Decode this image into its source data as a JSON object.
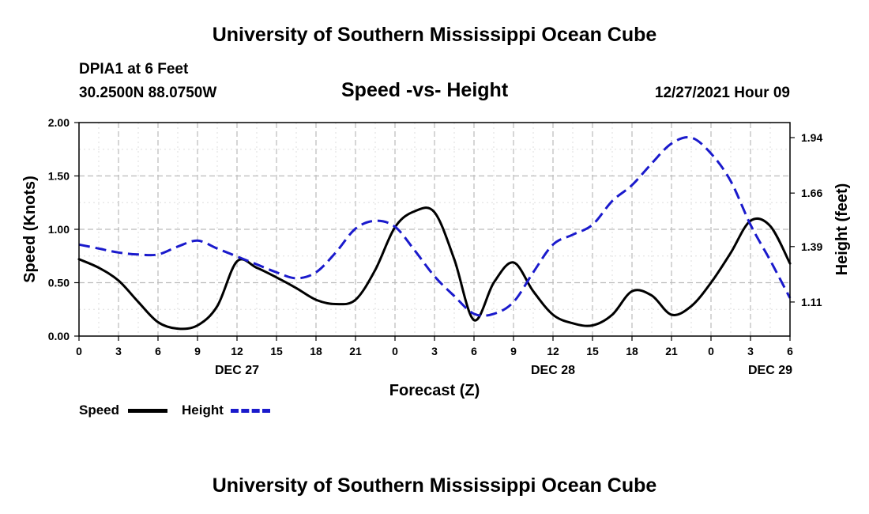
{
  "header": {
    "title": "University of Southern Mississippi Ocean Cube",
    "footer_title": "University of Southern Mississippi Ocean Cube",
    "station": "DPIA1 at 6 Feet",
    "coords": "30.2500N  88.0750W",
    "datetime": "12/27/2021 Hour 09"
  },
  "legend": {
    "speed_label": "Speed",
    "height_label": "Height",
    "speed_color": "#000000",
    "height_color": "#1a1acc"
  },
  "chart_data": {
    "type": "line",
    "title": "Speed -vs- Height",
    "xlabel": "Forecast (Z)",
    "ylabel": "Speed (Knots)",
    "y2label": "Height (feet)",
    "x_range_hours": [
      0,
      54
    ],
    "ylim": [
      0,
      2.0
    ],
    "y2lim": [
      0.938,
      2.016
    ],
    "x_tick_hours": [
      0,
      3,
      6,
      9,
      12,
      15,
      18,
      21,
      24,
      27,
      30,
      33,
      36,
      39,
      42,
      45,
      48,
      51,
      54
    ],
    "x_tick_labels": [
      "0",
      "3",
      "6",
      "9",
      "12",
      "15",
      "18",
      "21",
      "0",
      "3",
      "6",
      "9",
      "12",
      "15",
      "18",
      "21",
      "0",
      "3",
      "6"
    ],
    "date_labels": [
      {
        "hour": 12,
        "label": "DEC 27"
      },
      {
        "hour": 36,
        "label": "DEC 28"
      },
      {
        "hour": 52.5,
        "label": "DEC 29"
      }
    ],
    "y_ticks": [
      0.0,
      0.5,
      1.0,
      1.5,
      2.0
    ],
    "y_tick_labels": [
      "0.00",
      "0.50",
      "1.00",
      "1.50",
      "2.00"
    ],
    "y2_ticks": [
      1.11,
      1.39,
      1.66,
      1.94
    ],
    "y2_tick_labels": [
      "1.11",
      "1.39",
      "1.66",
      "1.94"
    ],
    "grid": true,
    "series": [
      {
        "name": "Speed",
        "axis": "left",
        "style": "solid",
        "color": "#000000",
        "x": [
          0,
          1.5,
          3,
          4.5,
          6,
          7.5,
          9,
          10.5,
          12,
          13.5,
          15,
          16.5,
          18,
          19.5,
          21,
          22.5,
          24,
          25.5,
          27,
          28.5,
          30,
          31.5,
          33,
          34.5,
          36,
          37.5,
          39,
          40.5,
          42,
          43.5,
          45,
          46.5,
          48,
          49.5,
          51,
          52.5,
          54
        ],
        "y": [
          0.72,
          0.64,
          0.52,
          0.32,
          0.13,
          0.07,
          0.1,
          0.28,
          0.7,
          0.64,
          0.55,
          0.45,
          0.34,
          0.3,
          0.34,
          0.62,
          1.02,
          1.17,
          1.16,
          0.72,
          0.15,
          0.5,
          0.69,
          0.42,
          0.2,
          0.12,
          0.1,
          0.2,
          0.42,
          0.38,
          0.2,
          0.28,
          0.5,
          0.78,
          1.08,
          1.03,
          0.68
        ]
      },
      {
        "name": "Height",
        "axis": "right",
        "style": "dashed",
        "color": "#1a1acc",
        "x": [
          0,
          1.5,
          3,
          4.5,
          6,
          7.5,
          9,
          10.5,
          12,
          13.5,
          15,
          16.5,
          18,
          19.5,
          21,
          22.5,
          24,
          25.5,
          27,
          28.5,
          30,
          31.5,
          33,
          34.5,
          36,
          37.5,
          39,
          40.5,
          42,
          43.5,
          45,
          46.5,
          48,
          49.5,
          51,
          52.5,
          54
        ],
        "y": [
          1.4,
          1.38,
          1.36,
          1.35,
          1.35,
          1.39,
          1.42,
          1.38,
          1.34,
          1.3,
          1.26,
          1.23,
          1.26,
          1.36,
          1.48,
          1.52,
          1.49,
          1.37,
          1.24,
          1.14,
          1.05,
          1.05,
          1.11,
          1.26,
          1.4,
          1.45,
          1.5,
          1.62,
          1.7,
          1.81,
          1.91,
          1.94,
          1.86,
          1.72,
          1.5,
          1.32,
          1.13
        ]
      }
    ]
  }
}
